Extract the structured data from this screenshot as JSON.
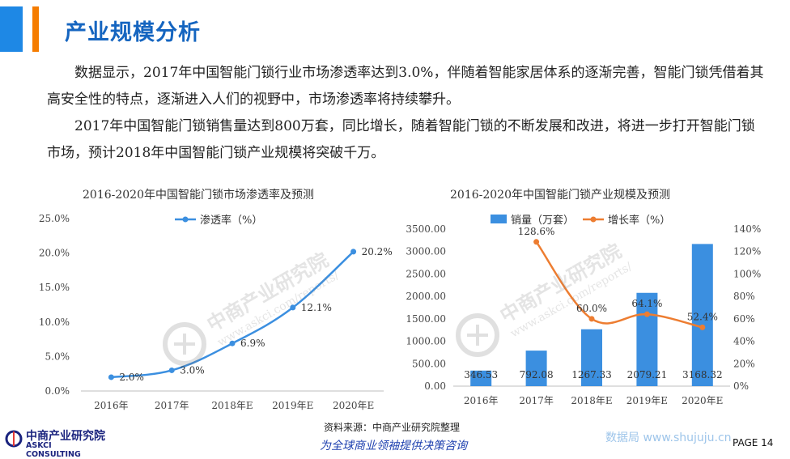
{
  "header": {
    "title": "产业规模分析",
    "accent_blue": "#1e88e5",
    "accent_orange": "#f57c00"
  },
  "body": {
    "paragraph_1": "数据显示，2017年中国智能门锁行业市场渗透率达到3.0%，伴随着智能家居体系的逐渐完善，智能门锁凭借着其高安全性的特点，逐渐进入人们的视野中，市场渗透率将持续攀升。",
    "paragraph_2": "2017年中国智能门锁销售量达到800万套，同比增长，随着智能门锁的不断发展和改进，将进一步打开智能门锁市场，预计2018年中国智能门锁产业规模将突破千万。"
  },
  "chart_data": [
    {
      "type": "line",
      "title": "2016-2020年中国智能门锁市场渗透率及预测",
      "categories": [
        "2016年",
        "2017年",
        "2018年E",
        "2019年E",
        "2020年E"
      ],
      "series": [
        {
          "name": "渗透率（%）",
          "values": [
            2.0,
            3.0,
            6.9,
            12.1,
            20.2
          ],
          "labels": [
            "2.0%",
            "3.0%",
            "6.9%",
            "12.1%",
            "20.2%"
          ],
          "color": "#3b8fe0"
        }
      ],
      "y_ticks": [
        "0.0%",
        "5.0%",
        "10.0%",
        "15.0%",
        "20.0%",
        "25.0%"
      ],
      "ylim": [
        0,
        25
      ],
      "smooth": true,
      "legend": "top-center"
    },
    {
      "type": "bar+line",
      "title": "2016-2020年中国智能门锁产业规模及预测",
      "categories": [
        "2016年",
        "2017年",
        "2018年E",
        "2019年E",
        "2020年E"
      ],
      "series": [
        {
          "name": "销量（万套）",
          "type": "bar",
          "axis": "left",
          "values": [
            346.53,
            792.08,
            1267.33,
            2079.21,
            3168.32
          ],
          "labels": [
            "346.53",
            "792.08",
            "1267.33",
            "2079.21",
            "3168.32"
          ],
          "color": "#3b8fe0"
        },
        {
          "name": "增长率（%）",
          "type": "line",
          "axis": "right",
          "values": [
            null,
            128.6,
            60.0,
            64.1,
            52.4
          ],
          "labels": [
            "",
            "128.6%",
            "60.0%",
            "64.1%",
            "52.4%"
          ],
          "color": "#ed7d31"
        }
      ],
      "y_left_ticks": [
        "0.00",
        "500.00",
        "1000.00",
        "1500.00",
        "2000.00",
        "2500.00",
        "3000.00",
        "3500.00"
      ],
      "ylim_left": [
        0,
        3500
      ],
      "y_right_ticks": [
        "0%",
        "20%",
        "40%",
        "60%",
        "80%",
        "100%",
        "120%",
        "140%"
      ],
      "ylim_right": [
        0,
        140
      ],
      "legend": "top-center"
    }
  ],
  "footer": {
    "brand_cn": "中商产业研究院",
    "brand_en": "ASKCI CONSULTING",
    "source": "资料来源：中商产业研究院整理",
    "slogan": "为全球商业领袖提供决策咨询",
    "site_watermark": "数据局 www.shujuju.cn",
    "page": "PAGE 14"
  },
  "watermark": {
    "brand": "中商产业研究院",
    "url": "www.askci.com/reports/"
  }
}
